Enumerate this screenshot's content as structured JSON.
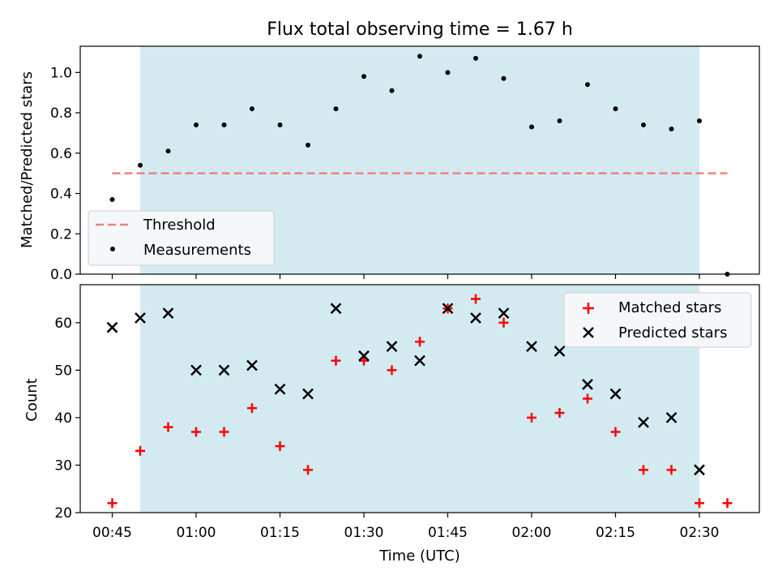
{
  "chart_data": [
    {
      "type": "scatter",
      "title": "Flux total observing time = 1.67 h",
      "ylabel": "Matched/Predicted stars",
      "xlabel": "",
      "ylim": [
        0,
        1.13
      ],
      "yticks": [
        0.0,
        0.2,
        0.4,
        0.6,
        0.8,
        1.0
      ],
      "ytick_labels": [
        "0.0",
        "0.2",
        "0.4",
        "0.6",
        "0.8",
        "1.0"
      ],
      "xticks_minutes": [
        45,
        60,
        75,
        90,
        105,
        120,
        135,
        150
      ],
      "xtick_labels": [],
      "shaded_range_minutes": [
        50,
        150
      ],
      "shade_color": "#d3ebf0",
      "threshold": {
        "name": "Threshold",
        "value": 0.5,
        "x_range_minutes": [
          45,
          155
        ],
        "color": "#f08080"
      },
      "series": [
        {
          "name": "Measurements",
          "color": "#000000",
          "marker": "dot",
          "x_minutes": [
            45,
            50,
            55,
            60,
            65,
            70,
            75,
            80,
            85,
            90,
            95,
            100,
            105,
            110,
            115,
            120,
            125,
            130,
            135,
            140,
            145,
            150,
            155
          ],
          "values": [
            0.37,
            0.54,
            0.61,
            0.74,
            0.74,
            0.82,
            0.74,
            0.64,
            0.82,
            0.98,
            0.91,
            1.08,
            1.0,
            1.07,
            0.97,
            0.73,
            0.76,
            0.94,
            0.82,
            0.74,
            0.72,
            0.76,
            0.0
          ]
        }
      ],
      "legend_location": "lower-left",
      "legend": [
        "Threshold",
        "Measurements"
      ]
    },
    {
      "type": "scatter",
      "title": "",
      "ylabel": "Count",
      "xlabel": "Time (UTC)",
      "ylim": [
        20,
        68
      ],
      "yticks": [
        20,
        30,
        40,
        50,
        60
      ],
      "ytick_labels": [
        "20",
        "30",
        "40",
        "50",
        "60"
      ],
      "xticks_minutes": [
        45,
        60,
        75,
        90,
        105,
        120,
        135,
        150
      ],
      "xtick_labels": [
        "00:45",
        "01:00",
        "01:15",
        "01:30",
        "01:45",
        "02:00",
        "02:15",
        "02:30"
      ],
      "shaded_range_minutes": [
        50,
        150
      ],
      "shade_color": "#d3ebf0",
      "series": [
        {
          "name": "Matched stars",
          "color": "#ff0000",
          "marker": "plus",
          "x_minutes": [
            45,
            50,
            55,
            60,
            65,
            70,
            75,
            80,
            85,
            90,
            95,
            100,
            105,
            110,
            115,
            120,
            125,
            130,
            135,
            140,
            145,
            150,
            155
          ],
          "values": [
            22,
            33,
            38,
            37,
            37,
            42,
            34,
            29,
            52,
            52,
            50,
            56,
            63,
            65,
            60,
            40,
            41,
            44,
            37,
            29,
            29,
            22,
            22
          ]
        },
        {
          "name": "Predicted stars",
          "color": "#000000",
          "marker": "x",
          "x_minutes": [
            45,
            50,
            55,
            60,
            65,
            70,
            75,
            80,
            85,
            90,
            95,
            100,
            105,
            110,
            115,
            120,
            125,
            130,
            135,
            140,
            145,
            150
          ],
          "values": [
            59,
            61,
            62,
            50,
            50,
            51,
            46,
            45,
            63,
            53,
            55,
            52,
            63,
            61,
            62,
            55,
            54,
            47,
            45,
            39,
            40,
            29
          ]
        }
      ],
      "legend_location": "upper-right",
      "legend": [
        "Matched stars",
        "Predicted stars"
      ]
    }
  ]
}
